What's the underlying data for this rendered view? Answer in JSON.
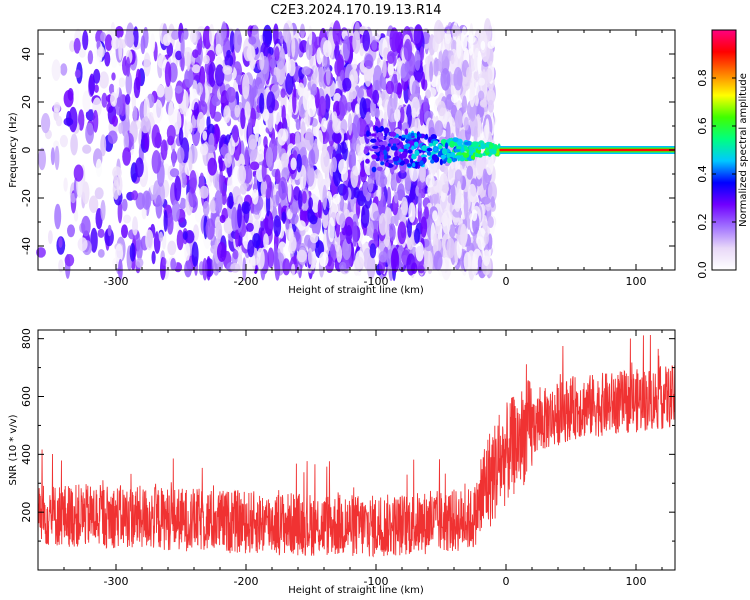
{
  "title": "C2E3.2024.170.19.13.R14",
  "chart_data": [
    {
      "type": "heatmap",
      "xlabel": "Height of straight line (km)",
      "ylabel": "Frequency (Hz)",
      "xlim": [
        -360,
        130
      ],
      "ylim": [
        -50,
        50
      ],
      "xticks": [
        -300,
        -200,
        -100,
        0,
        100
      ],
      "yticks": [
        -40,
        -20,
        0,
        20,
        40
      ],
      "signal": {
        "frequency_hz": 0,
        "emerges_below_km": -110,
        "stable_from_km": -5
      },
      "noise_extent_km": [
        -360,
        -20
      ],
      "colorbar": {
        "label": "Normalized spectral amplitude",
        "range": [
          0.0,
          1.0
        ],
        "ticks": [
          0.0,
          0.2,
          0.4,
          0.6,
          0.8
        ],
        "colors": [
          "#ffffff",
          "#e8d8f8",
          "#a070ff",
          "#7000ff",
          "#0000ff",
          "#00c8ff",
          "#00ff80",
          "#40ff00",
          "#ffff00",
          "#ff8000",
          "#ff0000",
          "#ff0080"
        ]
      }
    },
    {
      "type": "line",
      "xlabel": "Height of straight line (km)",
      "ylabel": "SNR (10 * v/v)",
      "xlim": [
        -360,
        130
      ],
      "ylim": [
        0,
        830
      ],
      "xticks": [
        -300,
        -200,
        -100,
        0,
        100
      ],
      "yticks": [
        200,
        400,
        600,
        800
      ],
      "color": "#f03232",
      "profile": {
        "x": [
          -360,
          -300,
          -200,
          -100,
          -25,
          -15,
          0,
          20,
          50,
          130
        ],
        "y": [
          190,
          185,
          165,
          150,
          175,
          300,
          400,
          500,
          560,
          600
        ]
      },
      "spread": 110
    }
  ]
}
